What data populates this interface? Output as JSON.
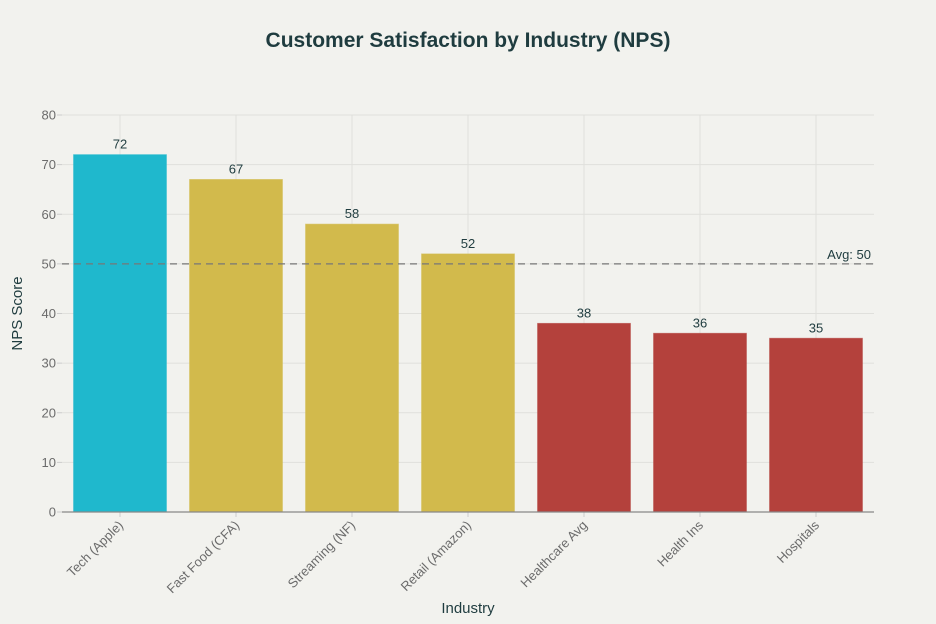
{
  "chart_data": {
    "type": "bar",
    "title": "Customer Satisfaction by Industry (NPS)",
    "xlabel": "Industry",
    "ylabel": "NPS Score",
    "categories": [
      "Tech (Apple)",
      "Fast Food (CFA)",
      "Streaming (NF)",
      "Retail (Amazon)",
      "Healthcare Avg",
      "Health Ins",
      "Hospitals"
    ],
    "values": [
      72,
      67,
      58,
      52,
      38,
      36,
      35
    ],
    "data_labels": [
      "72",
      "67",
      "58",
      "52",
      "38",
      "36",
      "35"
    ],
    "bar_colors": [
      "#1fb8cd",
      "#d2ba4c",
      "#d2ba4c",
      "#d2ba4c",
      "#b4413c",
      "#b4413c",
      "#b4413c"
    ],
    "ylim": [
      0,
      80
    ],
    "yticks": [
      0,
      10,
      20,
      30,
      40,
      50,
      60,
      70,
      80
    ],
    "ytick_labels": [
      "0",
      "10",
      "20",
      "30",
      "40",
      "50",
      "60",
      "70",
      "80"
    ],
    "grid": true,
    "legend": "none",
    "reference_line": {
      "value": 50,
      "style": "dashed",
      "label": "Avg: 50",
      "color": "#777777"
    }
  }
}
